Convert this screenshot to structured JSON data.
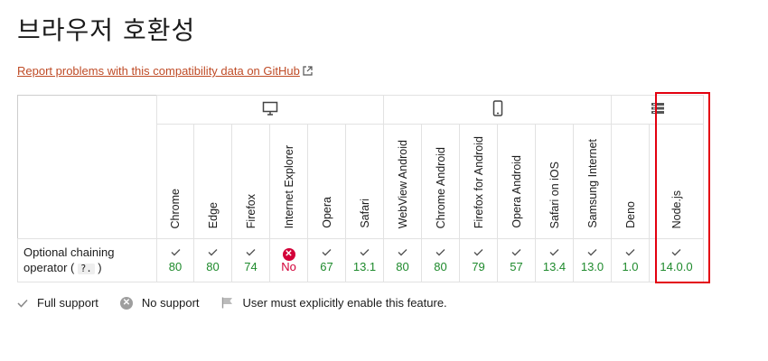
{
  "page": {
    "title": "브라우저 호환성",
    "report_link": "Report problems with this compatibility data on GitHub"
  },
  "platforms": [
    {
      "name": "desktop",
      "icon": "desktop-icon"
    },
    {
      "name": "mobile",
      "icon": "mobile-icon"
    },
    {
      "name": "server",
      "icon": "server-icon"
    }
  ],
  "browsers": [
    {
      "name": "Chrome",
      "platform": "desktop"
    },
    {
      "name": "Edge",
      "platform": "desktop"
    },
    {
      "name": "Firefox",
      "platform": "desktop"
    },
    {
      "name": "Internet Explorer",
      "platform": "desktop"
    },
    {
      "name": "Opera",
      "platform": "desktop"
    },
    {
      "name": "Safari",
      "platform": "desktop"
    },
    {
      "name": "WebView Android",
      "platform": "mobile"
    },
    {
      "name": "Chrome Android",
      "platform": "mobile"
    },
    {
      "name": "Firefox for Android",
      "platform": "mobile"
    },
    {
      "name": "Opera Android",
      "platform": "mobile"
    },
    {
      "name": "Safari on iOS",
      "platform": "mobile"
    },
    {
      "name": "Samsung Internet",
      "platform": "mobile"
    },
    {
      "name": "Deno",
      "platform": "server"
    },
    {
      "name": "Node.js",
      "platform": "server"
    }
  ],
  "feature": {
    "label_prefix": "Optional chaining operator (",
    "code": "?.",
    "label_suffix": ")",
    "support": [
      {
        "status": "yes",
        "version": "80"
      },
      {
        "status": "yes",
        "version": "80"
      },
      {
        "status": "yes",
        "version": "74"
      },
      {
        "status": "no",
        "version": "No"
      },
      {
        "status": "yes",
        "version": "67"
      },
      {
        "status": "yes",
        "version": "13.1"
      },
      {
        "status": "yes",
        "version": "80"
      },
      {
        "status": "yes",
        "version": "80"
      },
      {
        "status": "yes",
        "version": "79"
      },
      {
        "status": "yes",
        "version": "57"
      },
      {
        "status": "yes",
        "version": "13.4"
      },
      {
        "status": "yes",
        "version": "13.0"
      },
      {
        "status": "yes",
        "version": "1.0"
      },
      {
        "status": "yes",
        "version": "14.0.0"
      }
    ]
  },
  "legend": {
    "full_support": "Full support",
    "no_support": "No support",
    "flag": "User must explicitly enable this feature."
  },
  "colors": {
    "link": "#bf4b26",
    "yes": "#1e8a2c",
    "no": "#d30038",
    "highlight": "#e3000f"
  }
}
